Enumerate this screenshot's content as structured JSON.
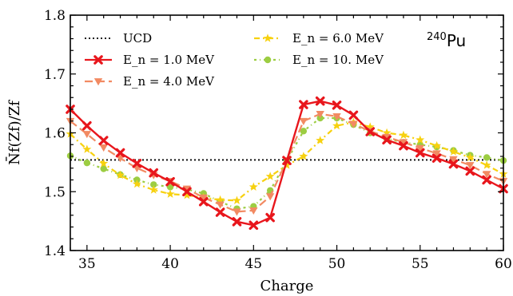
{
  "chart_data": {
    "type": "line",
    "title": "",
    "annotation": {
      "mass": "240",
      "element": "Pu"
    },
    "xlabel": "Charge",
    "ylabel": "N̄f(Zf)/Zf",
    "xlim": [
      34,
      60
    ],
    "ylim": [
      1.4,
      1.8
    ],
    "xticks": [
      "35",
      "40",
      "45",
      "50",
      "55",
      "60"
    ],
    "yticks": [
      "1.4",
      "1.5",
      "1.6",
      "1.7",
      "1.8"
    ],
    "grid": false,
    "legend_placement": "top",
    "reference": {
      "name": "UCD",
      "y": 1.554,
      "color": "#000000"
    },
    "x": [
      34,
      35,
      36,
      37,
      38,
      39,
      40,
      41,
      42,
      43,
      44,
      45,
      46,
      47,
      48,
      49,
      50,
      51,
      52,
      53,
      54,
      55,
      56,
      57,
      58,
      59,
      60
    ],
    "series": [
      {
        "name": "E_n = 1.0 MeV",
        "color": "#e8161c",
        "marker": "x",
        "values": [
          1.64,
          1.612,
          1.587,
          1.566,
          1.548,
          1.532,
          1.517,
          1.5,
          1.483,
          1.465,
          1.449,
          1.443,
          1.456,
          1.553,
          1.648,
          1.654,
          1.647,
          1.63,
          1.602,
          1.588,
          1.578,
          1.566,
          1.557,
          1.547,
          1.535,
          1.52,
          1.505
        ]
      },
      {
        "name": "E_n = 4.0 MeV",
        "color": "#f28a62",
        "marker": "triangle-down",
        "values": [
          1.62,
          1.598,
          1.575,
          1.557,
          1.54,
          1.528,
          1.518,
          1.505,
          1.49,
          1.478,
          1.466,
          1.468,
          1.492,
          1.553,
          1.62,
          1.632,
          1.628,
          1.615,
          1.603,
          1.593,
          1.584,
          1.574,
          1.565,
          1.555,
          1.545,
          1.53,
          1.518
        ]
      },
      {
        "name": "E_n = 6.0 MeV",
        "color": "#f7d10f",
        "marker": "star",
        "values": [
          1.598,
          1.572,
          1.548,
          1.528,
          1.513,
          1.503,
          1.496,
          1.494,
          1.49,
          1.486,
          1.485,
          1.508,
          1.526,
          1.545,
          1.56,
          1.587,
          1.612,
          1.618,
          1.61,
          1.6,
          1.596,
          1.588,
          1.578,
          1.568,
          1.558,
          1.545,
          1.53
        ]
      },
      {
        "name": "E_n = 10. MeV",
        "color": "#9ccd42",
        "marker": "circle",
        "values": [
          1.561,
          1.549,
          1.539,
          1.529,
          1.52,
          1.512,
          1.508,
          1.504,
          1.497,
          1.483,
          1.471,
          1.475,
          1.502,
          1.553,
          1.603,
          1.625,
          1.625,
          1.614,
          1.6,
          1.59,
          1.584,
          1.58,
          1.576,
          1.57,
          1.562,
          1.558,
          1.553
        ]
      }
    ]
  }
}
